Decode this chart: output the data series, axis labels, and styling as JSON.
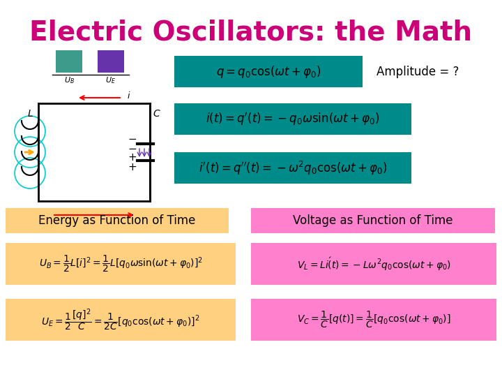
{
  "title": "Electric Oscillators: the Math",
  "title_color": "#CC0077",
  "title_fontsize": 28,
  "background_color": "#ffffff",
  "amplitude_text": "Amplitude = ?",
  "eq_bg_color": "#008B8B",
  "label_energy": "Energy as Function of Time",
  "label_voltage": "Voltage as Function of Time",
  "label_bg_energy": "#FFD080",
  "label_bg_voltage": "#FF80CC",
  "formula_bg_energy": "#FFD080",
  "formula_bg_voltage": "#FF80CC",
  "teal_swatch": "#3D9B8C",
  "purple_swatch": "#6633AA"
}
